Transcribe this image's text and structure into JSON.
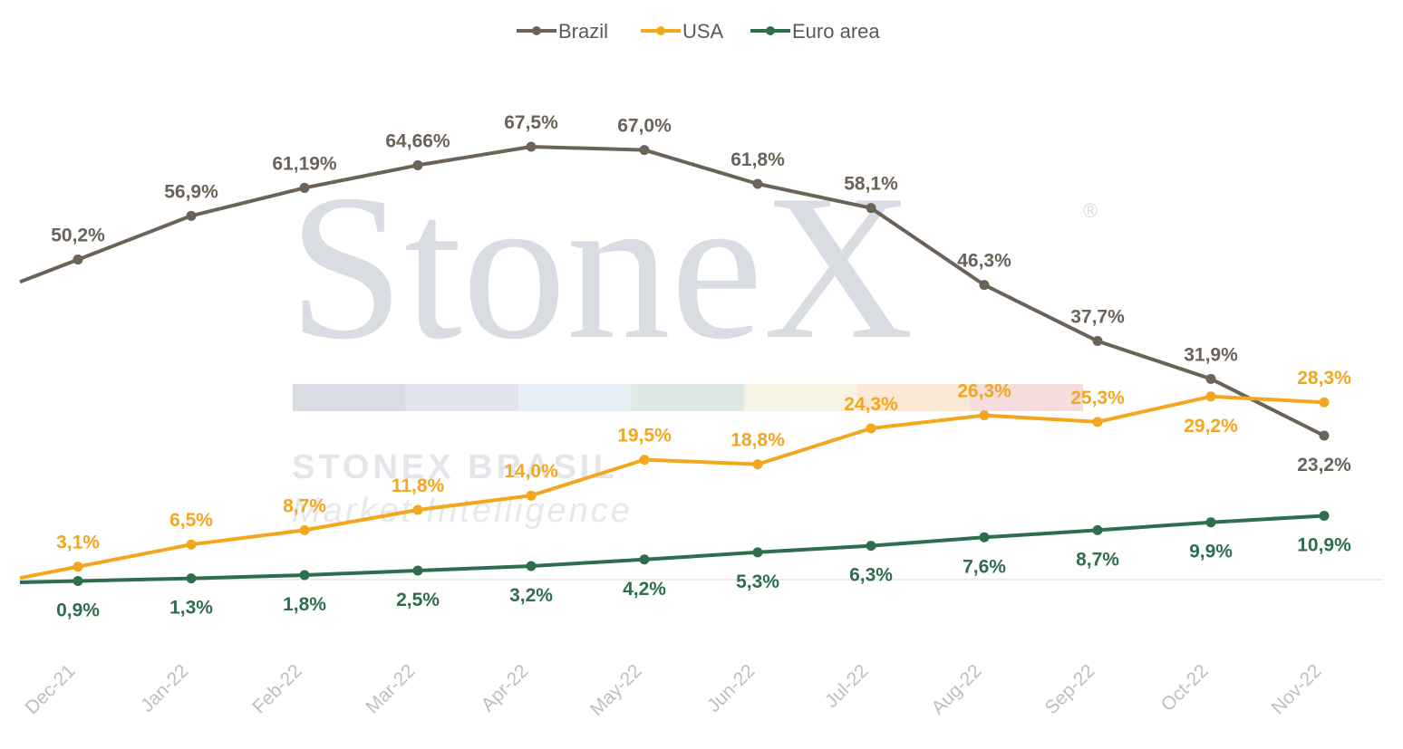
{
  "watermark": {
    "logo_text": "StoneX",
    "registered": "®",
    "line1": "STONEX BRASIL",
    "line2": "Market Intelligence",
    "stripe_colors": [
      "#d9dde3",
      "#e2e6ec",
      "#e8eef5",
      "#dfe8e2",
      "#f7f3e2",
      "#fbe9d5",
      "#f6dcdc"
    ]
  },
  "chart_data": {
    "type": "line",
    "categories": [
      "Dec-21",
      "Jan-22",
      "Feb-22",
      "Mar-22",
      "Apr-22",
      "May-22",
      "Jun-22",
      "Jul-22",
      "Aug-22",
      "Sep-22",
      "Oct-22",
      "Nov-22"
    ],
    "legend_position": "top-center",
    "grid": false,
    "series": [
      {
        "name": "Brazil",
        "color": "#6b6358",
        "values": [
          50.2,
          56.9,
          61.19,
          64.66,
          67.5,
          67.0,
          61.8,
          58.1,
          46.3,
          37.7,
          31.9,
          23.2
        ],
        "labels": [
          "50,2%",
          "56,9%",
          "61,19%",
          "64,66%",
          "67,5%",
          "67,0%",
          "61,8%",
          "58,1%",
          "46,3%",
          "37,7%",
          "31,9%",
          "23,2%"
        ],
        "label_position": [
          "above",
          "above",
          "above",
          "above",
          "above",
          "above",
          "above",
          "above",
          "above",
          "above",
          "above",
          "below"
        ]
      },
      {
        "name": "USA",
        "color": "#f2a71e",
        "values": [
          3.1,
          6.5,
          8.7,
          11.8,
          14.0,
          19.5,
          18.8,
          24.3,
          26.3,
          25.3,
          29.2,
          28.3
        ],
        "labels": [
          "3,1%",
          "6,5%",
          "8,7%",
          "11,8%",
          "14,0%",
          "19,5%",
          "18,8%",
          "24,3%",
          "26,3%",
          "25,3%",
          "29,2%",
          "28,3%"
        ],
        "label_position": [
          "above",
          "above",
          "above",
          "above",
          "above",
          "above",
          "above",
          "above",
          "above",
          "above",
          "below",
          "above"
        ]
      },
      {
        "name": "Euro area",
        "color": "#2e6e4e",
        "values": [
          0.9,
          1.3,
          1.8,
          2.5,
          3.2,
          4.2,
          5.3,
          6.3,
          7.6,
          8.7,
          9.9,
          10.9
        ],
        "labels": [
          "0,9%",
          "1,3%",
          "1,8%",
          "2,5%",
          "3,2%",
          "4,2%",
          "5,3%",
          "6,3%",
          "7,6%",
          "8,7%",
          "9,9%",
          "10,9%"
        ],
        "label_position": [
          "below",
          "below",
          "below",
          "below",
          "below",
          "below",
          "below",
          "below",
          "below",
          "below",
          "below",
          "below"
        ]
      }
    ]
  }
}
